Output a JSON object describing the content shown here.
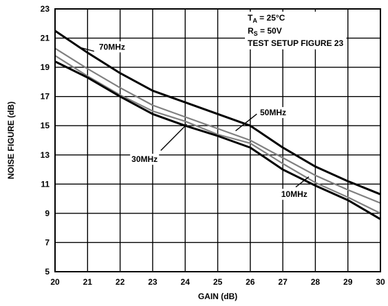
{
  "chart_data": {
    "type": "line",
    "xlabel": "GAIN (dB)",
    "ylabel": "NOISE FIGURE (dB)",
    "xlim": [
      20,
      30
    ],
    "ylim": [
      5,
      23
    ],
    "x_ticks": [
      20,
      21,
      22,
      23,
      24,
      25,
      26,
      27,
      28,
      29,
      30
    ],
    "y_ticks": [
      5,
      7,
      9,
      11,
      13,
      15,
      17,
      19,
      21,
      23
    ],
    "grid": true,
    "annotations": {
      "ta_main": "T",
      "ta_sub": "A",
      "ta_value": " = 25°C",
      "rs_main": "R",
      "rs_sub": "S",
      "rs_value": " = 50V",
      "setup": "TEST SETUP FIGURE 23"
    },
    "series": [
      {
        "name": "70MHz",
        "color": "#000000",
        "x": [
          20,
          21,
          22,
          23,
          24,
          25,
          26,
          27,
          28,
          29,
          30
        ],
        "y": [
          21.5,
          20.0,
          18.6,
          17.4,
          16.6,
          15.8,
          15.0,
          13.5,
          12.2,
          11.2,
          10.3
        ]
      },
      {
        "name": "50MHz",
        "color": "#808080",
        "x": [
          20,
          21,
          22,
          23,
          24,
          25,
          26,
          27,
          28,
          29,
          30
        ],
        "y": [
          20.3,
          18.9,
          17.6,
          16.4,
          15.6,
          14.8,
          14.0,
          12.8,
          11.6,
          10.6,
          9.7
        ]
      },
      {
        "name": "30MHz",
        "color": "#808080",
        "x": [
          20,
          21,
          22,
          23,
          24,
          25,
          26,
          27,
          28,
          29,
          30
        ],
        "y": [
          19.8,
          18.4,
          17.1,
          16.0,
          15.3,
          14.4,
          13.8,
          12.4,
          11.1,
          10.1,
          9.0
        ]
      },
      {
        "name": "10MHz",
        "color": "#000000",
        "x": [
          20,
          21,
          22,
          23,
          24,
          25,
          26,
          27,
          28,
          29,
          30
        ],
        "y": [
          19.4,
          18.3,
          17.0,
          15.8,
          15.0,
          14.3,
          13.5,
          12.0,
          10.9,
          9.9,
          8.6
        ]
      }
    ],
    "series_labels": [
      {
        "series": 0,
        "text": "70MHz",
        "at": [
          21.35,
          20.4
        ],
        "line_from": [
          21.2,
          20.1
        ],
        "line_to": [
          20.7,
          20.4
        ]
      },
      {
        "series": 1,
        "text": "50MHz",
        "at": [
          26.3,
          15.9
        ],
        "line_from": [
          26.2,
          15.8
        ],
        "line_to": [
          25.55,
          14.65
        ]
      },
      {
        "series": 2,
        "text": "30MHz",
        "at": [
          22.35,
          12.7
        ],
        "line_from": [
          23.25,
          13.3
        ],
        "line_to": [
          24.05,
          15.1
        ]
      },
      {
        "series": 3,
        "text": "10MHz",
        "at": [
          26.95,
          10.3
        ],
        "line_from": [
          27.4,
          10.8
        ],
        "line_to": [
          27.8,
          11.5
        ]
      }
    ]
  }
}
